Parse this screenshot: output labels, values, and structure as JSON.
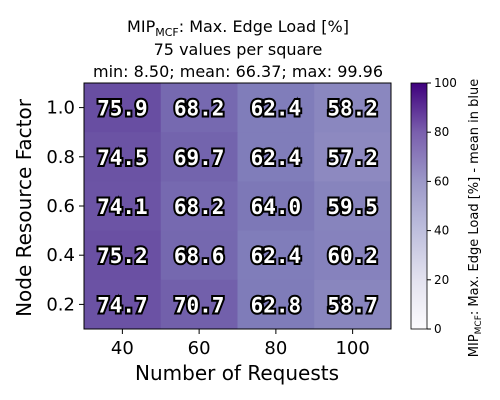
{
  "chart_data": {
    "type": "heatmap",
    "title": {
      "line1_main": "MIP",
      "line1_sub": "MCF",
      "line1_rest": ": Max. Edge Load [%]",
      "line2": "75 values per square",
      "line3": "min: 8.50; mean: 66.37; max: 99.96"
    },
    "xlabel": "Number of Requests",
    "ylabel": "Node Resource Factor",
    "x_categories": [
      "40",
      "60",
      "80",
      "100"
    ],
    "y_categories": [
      "1.0",
      "0.8",
      "0.6",
      "0.4",
      "0.2"
    ],
    "values": [
      [
        75.9,
        68.2,
        62.4,
        58.2
      ],
      [
        74.5,
        69.7,
        62.4,
        57.2
      ],
      [
        74.1,
        68.2,
        64.0,
        59.5
      ],
      [
        75.2,
        68.6,
        62.4,
        60.2
      ],
      [
        74.7,
        70.7,
        62.8,
        58.7
      ]
    ],
    "colorbar": {
      "label_main": "MIP",
      "label_sub": "MCF",
      "label_rest": ": Max. Edge Load [%] - mean in blue",
      "range": [
        0,
        100
      ],
      "ticks": [
        "0",
        "20",
        "40",
        "60",
        "80",
        "100"
      ],
      "colormap": "Purples"
    }
  }
}
